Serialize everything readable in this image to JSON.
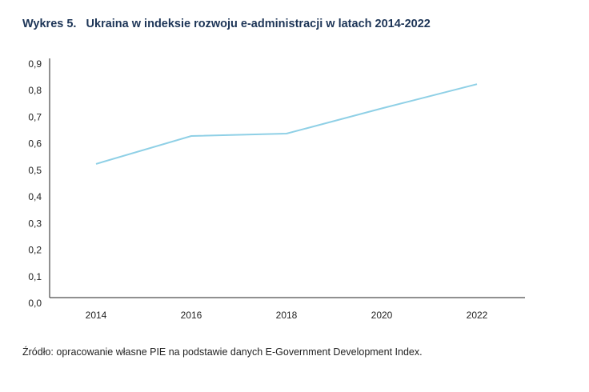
{
  "chart_data": {
    "type": "line",
    "title": "Wykres 5.   Ukraina w indeksie rozwoju e-administracji w latach 2014-2022",
    "categories": [
      "2014",
      "2016",
      "2018",
      "2020",
      "2022"
    ],
    "series": [
      {
        "values": [
          0.503,
          0.608,
          0.617,
          0.712,
          0.803
        ],
        "color": "#8fd0e6"
      }
    ],
    "yticks": [
      "0,0",
      "0,1",
      "0,2",
      "0,3",
      "0,4",
      "0,5",
      "0,6",
      "0,7",
      "0,8",
      "0,9"
    ],
    "ylim": [
      0,
      0.9
    ],
    "grid": false,
    "xlabel": "",
    "ylabel": "",
    "source": "Źródło: opracowanie własne PIE na podstawie danych E-Government Development Index."
  }
}
